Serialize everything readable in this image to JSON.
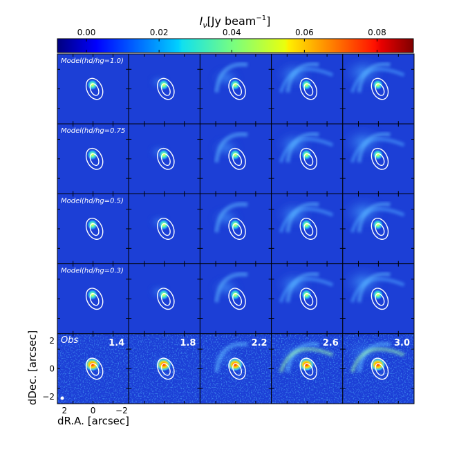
{
  "chart_data": {
    "type": "heatmap",
    "colorbar": {
      "label": "I_ν [Jy beam⁻¹]",
      "label_main": "I",
      "label_sub": "ν",
      "label_unit": "[Jy beam",
      "label_sup": "−1",
      "label_close": "]",
      "range": [
        -0.008,
        0.09
      ],
      "ticks": [
        "0.00",
        "0.02",
        "0.04",
        "0.06",
        "0.08"
      ],
      "tick_values": [
        0.0,
        0.02,
        0.04,
        0.06,
        0.08
      ],
      "colormap": "jet"
    },
    "row_labels": [
      "Model(hd/hg=1.0)",
      "Model(hd/hg=0.75",
      "Model(hd/hg=0.5)",
      "Model(hd/hg=0.3)",
      "Obs"
    ],
    "column_labels": [
      "1.4",
      "1.8",
      "2.2",
      "2.6",
      "3.0"
    ],
    "xlabel": "dR.A. [arcsec]",
    "ylabel": "dDec. [arcsec]",
    "x_ticks": [
      "2",
      "0",
      "−2"
    ],
    "y_ticks": [
      "2",
      "0",
      "−2"
    ],
    "x_tick_values": [
      2,
      0,
      -2
    ],
    "y_tick_values": [
      2,
      0,
      -2
    ],
    "xlim": [
      2.5,
      -2.5
    ],
    "ylim": [
      -2.5,
      2.5
    ],
    "background_color": "#1c3fd6",
    "contour_color": "#ffffff",
    "annotation_color": "#ffffff"
  }
}
